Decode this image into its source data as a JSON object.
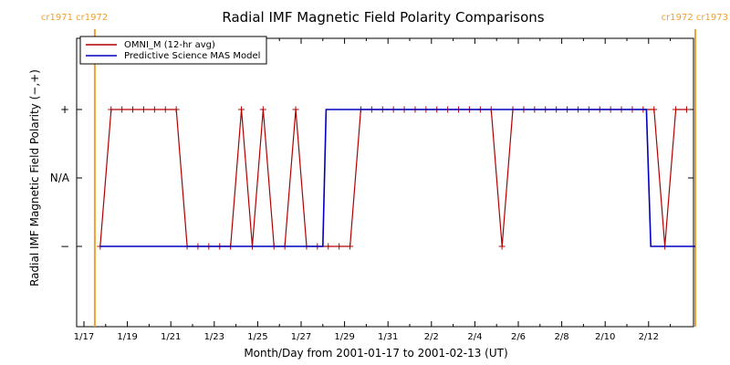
{
  "chart_data": {
    "type": "line",
    "title": "Radial IMF Magnetic Field Polarity Comparisons",
    "xlabel": "Month/Day from 2001-01-17 to 2001-02-13 (UT)",
    "ylabel": "Radial IMF Magnetic Field Polarity (−,+)",
    "x_tick_labels": [
      "1/17",
      "1/19",
      "1/21",
      "1/23",
      "1/25",
      "1/27",
      "1/29",
      "1/31",
      "2/2",
      "2/4",
      "2/6",
      "2/8",
      "2/10",
      "2/12"
    ],
    "x_tick_days": [
      0,
      2,
      4,
      6,
      8,
      10,
      12,
      14,
      16,
      18,
      20,
      22,
      24,
      26
    ],
    "xlim_days": [
      0,
      28.2
    ],
    "y_tick_labels": [
      "−",
      "N/A",
      "+"
    ],
    "y_tick_values": [
      -1,
      0,
      1
    ],
    "ylim": [
      -2,
      2
    ],
    "carrington_markers": [
      {
        "day": 0.5,
        "label": "cr1971 cr1972",
        "color": "#f0a030",
        "label_side": "left"
      },
      {
        "day": 28.15,
        "label": "cr1972 cr1973",
        "color": "#f0a030",
        "label_side": "right"
      }
    ],
    "legend": {
      "position": "top-left",
      "entries": [
        {
          "label": "OMNI_M (12-hr avg)",
          "color": "#b00000"
        },
        {
          "label": "Predictive Science MAS Model",
          "color": "#0000c0"
        }
      ]
    },
    "series": [
      {
        "name": "OMNI_M (12-hr avg)",
        "color": "#b00000",
        "markers": true,
        "x": [
          0.75,
          1.25,
          1.75,
          2.25,
          2.75,
          3.25,
          3.75,
          4.25,
          4.75,
          5.25,
          5.75,
          6.25,
          6.75,
          7.25,
          7.75,
          8.25,
          8.75,
          9.25,
          9.75,
          10.25,
          10.75,
          11.25,
          11.75,
          12.25,
          12.75,
          13.25,
          13.75,
          14.25,
          14.75,
          15.25,
          15.75,
          16.25,
          16.75,
          17.25,
          17.75,
          18.25,
          18.75,
          19.25,
          19.75,
          20.25,
          20.75,
          21.25,
          21.75,
          22.25,
          22.75,
          23.25,
          23.75,
          24.25,
          24.75,
          25.25,
          25.75,
          26.25,
          26.75,
          27.25,
          27.75
        ],
        "y": [
          -1,
          1,
          1,
          1,
          1,
          1,
          1,
          1,
          -1,
          -1,
          -1,
          -1,
          -1,
          1,
          -1,
          1,
          -1,
          -1,
          1,
          -1,
          -1,
          -1,
          -1,
          -1,
          1,
          1,
          1,
          1,
          1,
          1,
          1,
          1,
          1,
          1,
          1,
          1,
          1,
          -1,
          1,
          1,
          1,
          1,
          1,
          1,
          1,
          1,
          1,
          1,
          1,
          1,
          1,
          1,
          -1,
          1,
          1
        ]
      },
      {
        "name": "Predictive Science MAS Model",
        "color": "#0000c0",
        "markers": false,
        "x": [
          0.75,
          11.0,
          11.15,
          25.9,
          26.1,
          28.15
        ],
        "y": [
          -1,
          -1,
          1,
          1,
          -1,
          -1
        ]
      }
    ]
  }
}
